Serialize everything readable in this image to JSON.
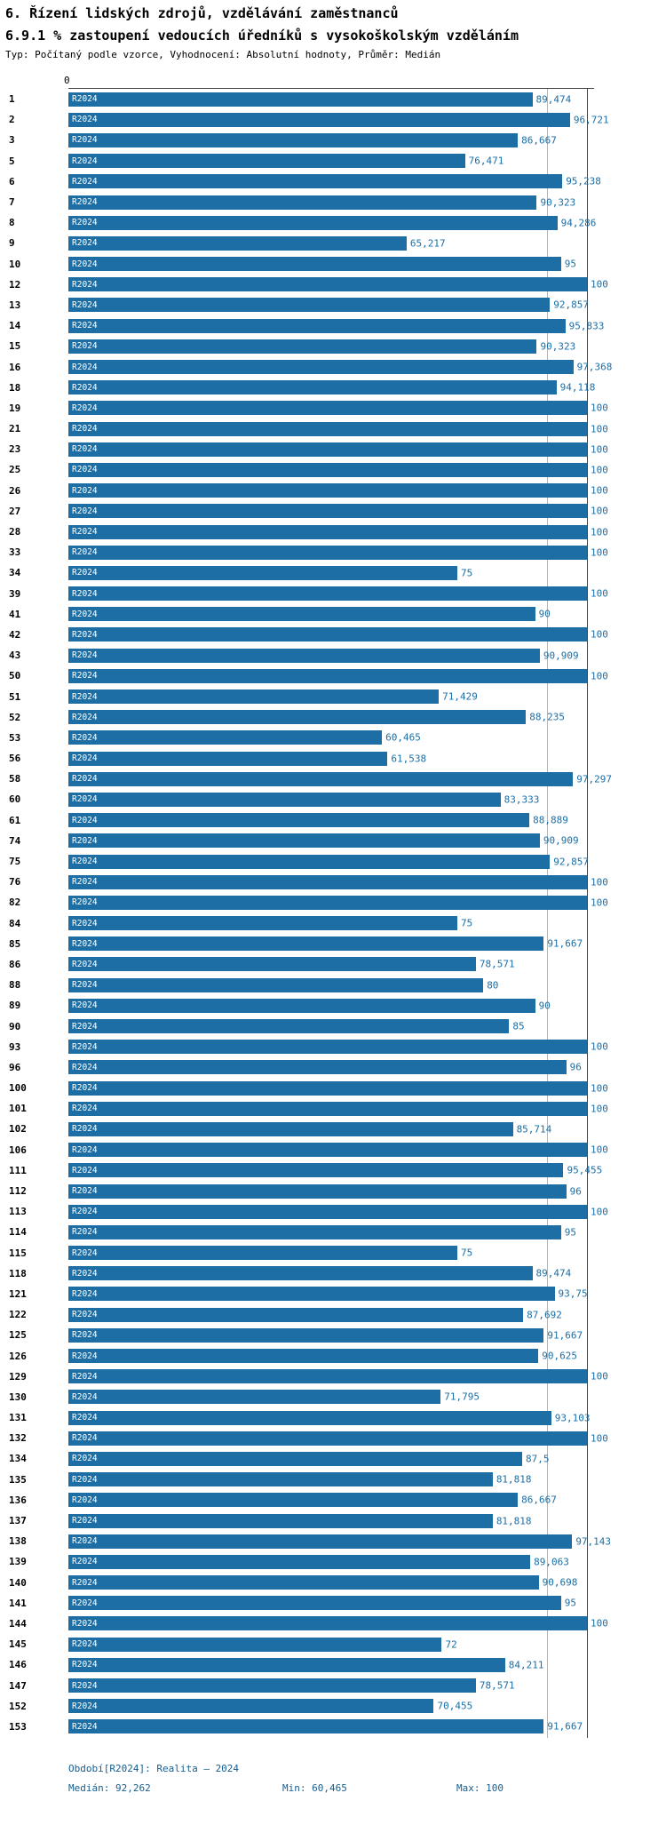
{
  "chart_data": {
    "type": "bar",
    "orientation": "horizontal",
    "title": "6. Řízení lidských zdrojů, vzdělávání zaměstnanců",
    "subtitle": "6.9.1 % zastoupení vedoucích úředníků s vysokoškolským vzděláním",
    "meta": "Typ: Počítaný podle vzorce, Vyhodnocení: Absolutní hodnoty, Průměr: Medián",
    "series_label": "R2024",
    "xlim": [
      0,
      100
    ],
    "x_ticks": [
      "0"
    ],
    "grid": false,
    "bar_color": "#1c6ea4",
    "median": 92.262,
    "min": 60.465,
    "max": 100,
    "categories": [
      "1",
      "2",
      "3",
      "5",
      "6",
      "7",
      "8",
      "9",
      "10",
      "12",
      "13",
      "14",
      "15",
      "16",
      "18",
      "19",
      "21",
      "23",
      "25",
      "26",
      "27",
      "28",
      "33",
      "34",
      "39",
      "41",
      "42",
      "43",
      "50",
      "51",
      "52",
      "53",
      "56",
      "58",
      "60",
      "61",
      "74",
      "75",
      "76",
      "82",
      "84",
      "85",
      "86",
      "88",
      "89",
      "90",
      "93",
      "96",
      "100",
      "101",
      "102",
      "106",
      "111",
      "112",
      "113",
      "114",
      "115",
      "118",
      "121",
      "122",
      "125",
      "126",
      "129",
      "130",
      "131",
      "132",
      "134",
      "135",
      "136",
      "137",
      "138",
      "139",
      "140",
      "141",
      "144",
      "145",
      "146",
      "147",
      "152",
      "153"
    ],
    "values": [
      89.474,
      96.721,
      86.667,
      76.471,
      95.238,
      90.323,
      94.286,
      65.217,
      95,
      100,
      92.857,
      95.833,
      90.323,
      97.368,
      94.118,
      100,
      100,
      100,
      100,
      100,
      100,
      100,
      100,
      75,
      100,
      90,
      100,
      90.909,
      100,
      71.429,
      88.235,
      60.465,
      61.538,
      97.297,
      83.333,
      88.889,
      90.909,
      92.857,
      100,
      100,
      75,
      91.667,
      78.571,
      80,
      90,
      85,
      100,
      96,
      100,
      100,
      85.714,
      100,
      95.455,
      96,
      100,
      95,
      75,
      89.474,
      93.75,
      87.692,
      91.667,
      90.625,
      100,
      71.795,
      93.103,
      100,
      87.5,
      81.818,
      86.667,
      81.818,
      97.143,
      89.063,
      90.698,
      95,
      100,
      72,
      84.211,
      78.571,
      70.455,
      91.667
    ],
    "value_labels": [
      "89,474",
      "96,721",
      "86,667",
      "76,471",
      "95,238",
      "90,323",
      "94,286",
      "65,217",
      "95",
      "100",
      "92,857",
      "95,833",
      "90,323",
      "97,368",
      "94,118",
      "100",
      "100",
      "100",
      "100",
      "100",
      "100",
      "100",
      "100",
      "75",
      "100",
      "90",
      "100",
      "90,909",
      "100",
      "71,429",
      "88,235",
      "60,465",
      "61,538",
      "97,297",
      "83,333",
      "88,889",
      "90,909",
      "92,857",
      "100",
      "100",
      "75",
      "91,667",
      "78,571",
      "80",
      "90",
      "85",
      "100",
      "96",
      "100",
      "100",
      "85,714",
      "100",
      "95,455",
      "96",
      "100",
      "95",
      "75",
      "89,474",
      "93,75",
      "87,692",
      "91,667",
      "90,625",
      "100",
      "71,795",
      "93,103",
      "100",
      "87,5",
      "81,818",
      "86,667",
      "81,818",
      "97,143",
      "89,063",
      "90,698",
      "95",
      "100",
      "72",
      "84,211",
      "78,571",
      "70,455",
      "91,667"
    ],
    "annotations": {
      "period": "Období[R2024]: Realita – 2024",
      "median_label": "Medián: 92,262",
      "min_label": "Min: 60,465",
      "max_label": "Max: 100"
    }
  }
}
